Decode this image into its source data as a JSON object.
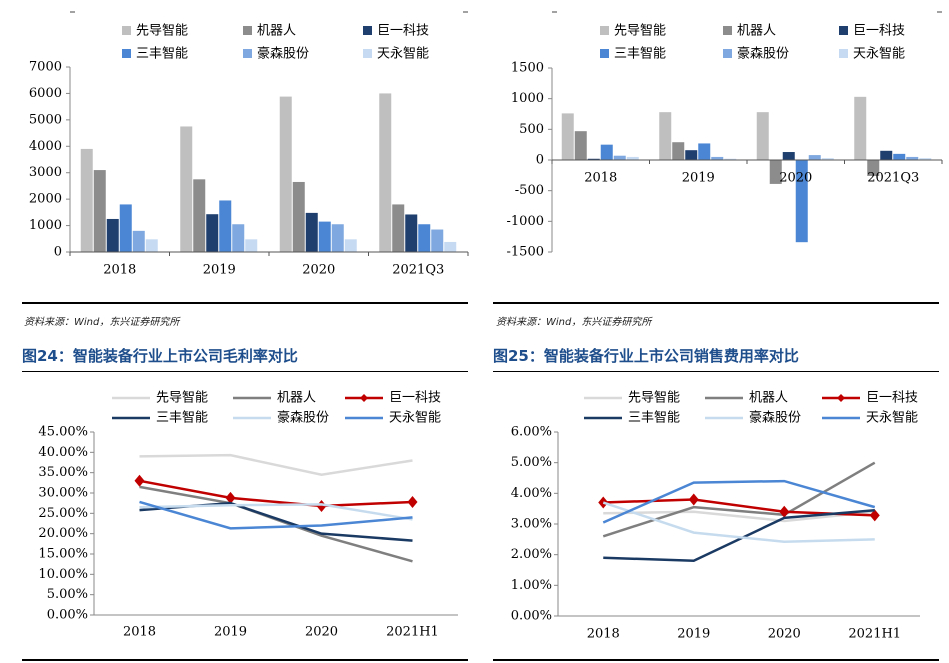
{
  "source_text": "资料来源：Wind，东兴证券研究所",
  "figure_titles": {
    "fig24": "图24：智能装备行业上市公司毛利率对比",
    "fig25": "图25：智能装备行业上市公司销售费用率对比"
  },
  "colors": {
    "title": "#1f4e8c",
    "bar_series": [
      "#bfbfbf",
      "#8c8c8c",
      "#1f3f6e",
      "#4a86d4",
      "#7fa8e0",
      "#c6daf2"
    ],
    "line_series": [
      "#d9d9d9",
      "#7f7f7f",
      "#c00000",
      "#1b3a63",
      "#c6dcee",
      "#4a86d4"
    ]
  },
  "chart_data": [
    {
      "id": "top-left",
      "type": "bar",
      "categories": [
        "2018",
        "2019",
        "2020",
        "2021Q3"
      ],
      "series": [
        {
          "name": "先导智能",
          "values": [
            3900,
            4750,
            5880,
            6000
          ]
        },
        {
          "name": "机器人",
          "values": [
            3100,
            2750,
            2650,
            1800
          ]
        },
        {
          "name": "巨一科技",
          "values": [
            1250,
            1430,
            1480,
            1420
          ]
        },
        {
          "name": "三丰智能",
          "values": [
            1800,
            1950,
            1150,
            1050
          ]
        },
        {
          "name": "豪森股份",
          "values": [
            800,
            1050,
            1050,
            850
          ]
        },
        {
          "name": "天永智能",
          "values": [
            480,
            480,
            480,
            380
          ]
        }
      ],
      "ylim": [
        0,
        7000
      ],
      "yticks": [
        "0",
        "1000",
        "2000",
        "3000",
        "4000",
        "5000",
        "6000",
        "7000"
      ],
      "legend": "top"
    },
    {
      "id": "top-right",
      "type": "bar",
      "categories": [
        "2018",
        "2019",
        "2020",
        "2021Q3"
      ],
      "series": [
        {
          "name": "先导智能",
          "values": [
            760,
            780,
            780,
            1030
          ]
        },
        {
          "name": "机器人",
          "values": [
            470,
            290,
            -390,
            -260
          ]
        },
        {
          "name": "巨一科技",
          "values": [
            20,
            160,
            130,
            150
          ]
        },
        {
          "name": "三丰智能",
          "values": [
            250,
            270,
            -1340,
            100
          ]
        },
        {
          "name": "豪森股份",
          "values": [
            70,
            50,
            80,
            50
          ]
        },
        {
          "name": "天永智能",
          "values": [
            50,
            20,
            30,
            30
          ]
        }
      ],
      "ylim": [
        -1500,
        1500
      ],
      "yticks": [
        "1500",
        "1000",
        "500",
        "0",
        "-500",
        "-1000",
        "-1500"
      ],
      "legend": "top"
    },
    {
      "id": "fig24",
      "type": "line",
      "x": [
        "2018",
        "2019",
        "2020",
        "2021H1"
      ],
      "series": [
        {
          "name": "先导智能",
          "values": [
            39.0,
            39.3,
            34.5,
            38.0
          ]
        },
        {
          "name": "机器人",
          "values": [
            31.5,
            27.5,
            19.5,
            13.2
          ]
        },
        {
          "name": "巨一科技",
          "values": [
            33.0,
            28.8,
            26.8,
            27.8
          ]
        },
        {
          "name": "三丰智能",
          "values": [
            25.8,
            27.5,
            20.0,
            18.3
          ]
        },
        {
          "name": "豪森股份",
          "values": [
            26.5,
            27.0,
            27.2,
            23.5
          ]
        },
        {
          "name": "天永智能",
          "values": [
            27.8,
            21.3,
            22.0,
            24.0
          ]
        }
      ],
      "ylim": [
        0,
        45
      ],
      "yticks": [
        "0.00%",
        "5.00%",
        "10.00%",
        "15.00%",
        "20.00%",
        "25.00%",
        "30.00%",
        "35.00%",
        "40.00%",
        "45.00%"
      ],
      "legend": "top"
    },
    {
      "id": "fig25",
      "type": "line",
      "x": [
        "2018",
        "2019",
        "2020",
        "2021H1"
      ],
      "series": [
        {
          "name": "先导智能",
          "values": [
            3.35,
            3.4,
            3.1,
            3.4
          ]
        },
        {
          "name": "机器人",
          "values": [
            2.6,
            3.55,
            3.3,
            5.0
          ]
        },
        {
          "name": "巨一科技",
          "values": [
            3.7,
            3.8,
            3.4,
            3.28
          ]
        },
        {
          "name": "三丰智能",
          "values": [
            1.9,
            1.8,
            3.2,
            3.45
          ]
        },
        {
          "name": "豪森股份",
          "values": [
            3.7,
            2.72,
            2.42,
            2.5
          ]
        },
        {
          "name": "天永智能",
          "values": [
            3.05,
            4.35,
            4.4,
            3.55
          ]
        }
      ],
      "ylim": [
        0,
        6
      ],
      "yticks": [
        "0.00%",
        "1.00%",
        "2.00%",
        "3.00%",
        "4.00%",
        "5.00%",
        "6.00%"
      ],
      "legend": "top"
    }
  ]
}
